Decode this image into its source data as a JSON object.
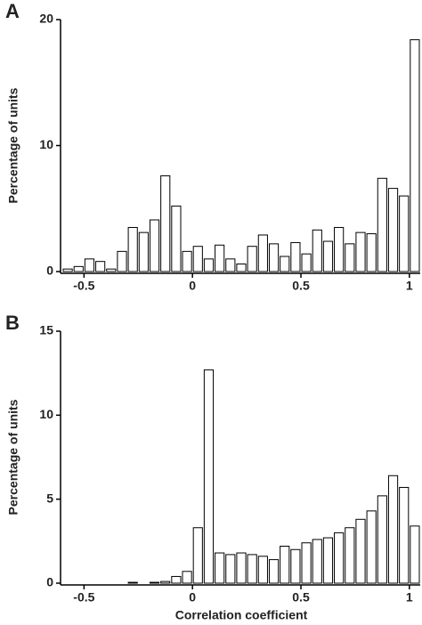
{
  "chart_data": [
    {
      "type": "histogram",
      "panel_label": "A",
      "ylabel": "Percentage of units",
      "bins": [
        -0.6,
        -0.55,
        -0.5,
        -0.45,
        -0.4,
        -0.35,
        -0.3,
        -0.25,
        -0.2,
        -0.15,
        -0.1,
        -0.05,
        0,
        0.05,
        0.1,
        0.15,
        0.2,
        0.25,
        0.3,
        0.35,
        0.4,
        0.45,
        0.5,
        0.55,
        0.6,
        0.65,
        0.7,
        0.75,
        0.8,
        0.85,
        0.9,
        0.95,
        1.0,
        1.05
      ],
      "values": [
        0.2,
        0.4,
        1.0,
        0.8,
        0.2,
        1.6,
        3.5,
        3.1,
        4.1,
        7.6,
        5.2,
        1.6,
        2.0,
        1.0,
        2.1,
        1.0,
        0.6,
        2.0,
        2.9,
        2.2,
        1.2,
        2.3,
        1.4,
        3.3,
        2.4,
        3.5,
        2.2,
        3.1,
        3.0,
        7.4,
        6.6,
        6.0,
        18.4
      ],
      "color": "#ffffff",
      "xlim": [
        -0.6,
        1.05
      ],
      "xticks": [
        -0.5,
        0,
        0.5,
        1
      ],
      "ylim": [
        0,
        20
      ],
      "yticks": [
        0,
        10,
        20
      ]
    },
    {
      "type": "histogram",
      "panel_label": "B",
      "ylabel": "Percentage of units",
      "xlabel": "Correlation coefficient",
      "bins": [
        -0.6,
        -0.55,
        -0.5,
        -0.45,
        -0.4,
        -0.35,
        -0.3,
        -0.25,
        -0.2,
        -0.15,
        -0.1,
        -0.05,
        0,
        0.05,
        0.1,
        0.15,
        0.2,
        0.25,
        0.3,
        0.35,
        0.4,
        0.45,
        0.5,
        0.55,
        0.6,
        0.65,
        0.7,
        0.75,
        0.8,
        0.85,
        0.9,
        0.95,
        1.0,
        1.05
      ],
      "values": [
        0,
        0,
        0,
        0,
        0,
        0,
        0.05,
        0,
        0.05,
        0.1,
        0.4,
        0.7,
        3.3,
        12.7,
        1.8,
        1.7,
        1.8,
        1.7,
        1.6,
        1.4,
        2.2,
        2.0,
        2.4,
        2.6,
        2.7,
        3.0,
        3.3,
        3.8,
        4.3,
        5.2,
        6.4,
        5.7,
        3.4
      ],
      "color": "#ffffff",
      "xlim": [
        -0.6,
        1.05
      ],
      "xticks": [
        -0.5,
        0,
        0.5,
        1
      ],
      "ylim": [
        0,
        15
      ],
      "yticks": [
        0,
        5,
        10,
        15
      ]
    }
  ]
}
